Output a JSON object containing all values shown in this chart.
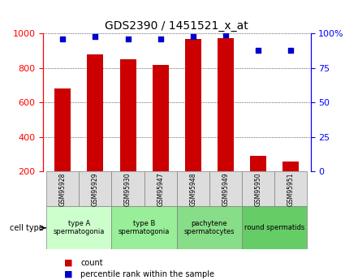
{
  "title": "GDS2390 / 1451521_x_at",
  "samples": [
    "GSM95928",
    "GSM95929",
    "GSM95930",
    "GSM95947",
    "GSM95948",
    "GSM95949",
    "GSM95950",
    "GSM95951"
  ],
  "counts": [
    680,
    880,
    850,
    820,
    970,
    975,
    290,
    260
  ],
  "percentile_ranks": [
    96,
    98,
    96,
    96,
    98,
    99,
    88,
    88
  ],
  "ylim_left": [
    200,
    1000
  ],
  "ylim_right": [
    0,
    100
  ],
  "yticks_left": [
    200,
    400,
    600,
    800,
    1000
  ],
  "yticks_right": [
    0,
    25,
    50,
    75,
    100
  ],
  "ytick_labels_right": [
    "0",
    "25",
    "50",
    "75",
    "100%"
  ],
  "bar_color": "#cc0000",
  "dot_color": "#0000cc",
  "grid_color": "#000000",
  "cell_types": [
    {
      "label": "type A\nspermatogonia",
      "span": [
        0,
        2
      ],
      "color": "#ccffcc"
    },
    {
      "label": "type B\nspermatogonia",
      "span": [
        2,
        4
      ],
      "color": "#99ee99"
    },
    {
      "label": "pachytene\nspermatocytes",
      "span": [
        4,
        6
      ],
      "color": "#88dd88"
    },
    {
      "label": "round spermatids",
      "span": [
        6,
        8
      ],
      "color": "#66cc66"
    }
  ],
  "cell_type_label": "cell type",
  "legend_count_label": "count",
  "legend_percentile_label": "percentile rank within the sample",
  "bar_width": 0.5,
  "sample_row_color": "#dddddd",
  "fig_bg_color": "#ffffff"
}
